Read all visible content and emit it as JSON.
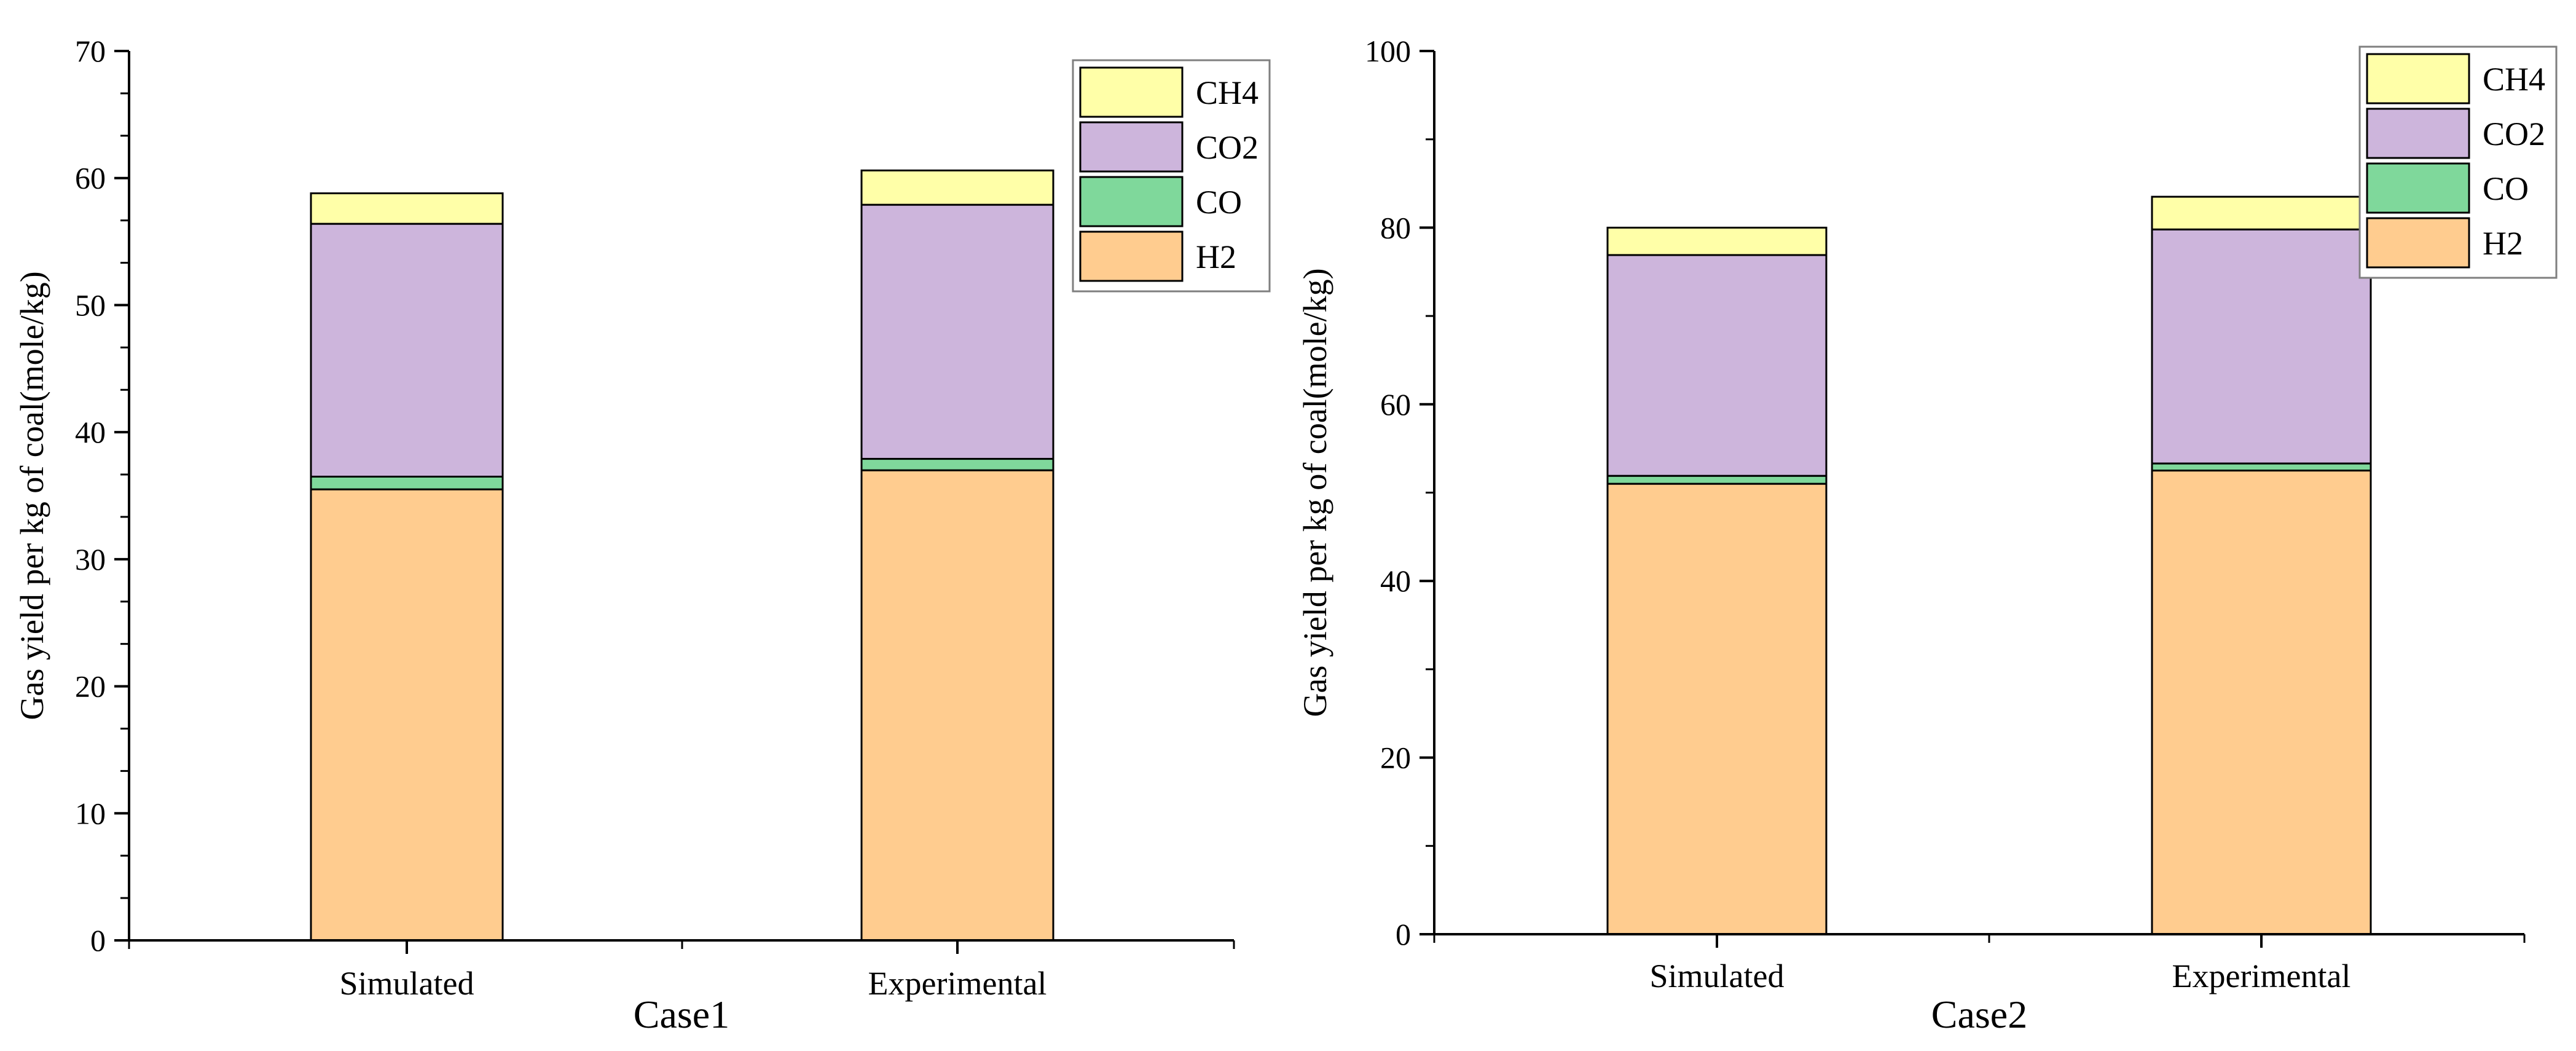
{
  "chart_data": [
    {
      "type": "bar",
      "stacked": true,
      "title": "",
      "xlabel": "Case1",
      "ylabel": "Gas yield per kg of coal(mole/kg)",
      "ylim": [
        0,
        70
      ],
      "yticks": [
        0,
        10,
        20,
        30,
        40,
        50,
        60,
        70
      ],
      "categories": [
        "Simulated",
        "Experimental"
      ],
      "series": [
        {
          "name": "H2",
          "color": "#FFCC8F",
          "values": [
            35.5,
            37.0
          ]
        },
        {
          "name": "CO",
          "color": "#7FD89B",
          "values": [
            1.0,
            0.9
          ]
        },
        {
          "name": "CO2",
          "color": "#CDB5DC",
          "values": [
            19.9,
            20.0
          ]
        },
        {
          "name": "CH4",
          "color": "#FFFFA8",
          "values": [
            2.4,
            2.7
          ]
        }
      ],
      "legend": {
        "position": "top-right",
        "order": [
          "CH4",
          "CO2",
          "CO",
          "H2"
        ]
      },
      "grid": false
    },
    {
      "type": "bar",
      "stacked": true,
      "title": "",
      "xlabel": "Case2",
      "ylabel": "Gas yield per kg of coal(mole/kg)",
      "ylim": [
        0,
        100
      ],
      "yticks": [
        0,
        20,
        40,
        60,
        80,
        100
      ],
      "categories": [
        "Simulated",
        "Experimental"
      ],
      "series": [
        {
          "name": "H2",
          "color": "#FFCC8F",
          "values": [
            51.0,
            52.5
          ]
        },
        {
          "name": "CO",
          "color": "#7FD89B",
          "values": [
            0.9,
            0.8
          ]
        },
        {
          "name": "CO2",
          "color": "#CDB5DC",
          "values": [
            25.0,
            26.5
          ]
        },
        {
          "name": "CH4",
          "color": "#FFFFA8",
          "values": [
            3.1,
            3.7
          ]
        }
      ],
      "legend": {
        "position": "top-right",
        "order": [
          "CH4",
          "CO2",
          "CO",
          "H2"
        ]
      },
      "grid": false
    }
  ]
}
